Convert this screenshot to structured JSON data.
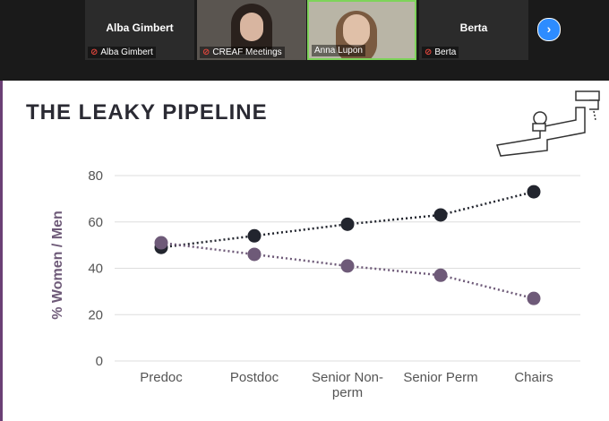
{
  "participants": [
    {
      "tile_name": "Alba Gimbert",
      "label": "Alba Gimbert"
    },
    {
      "label": "CREAF Meetings"
    },
    {
      "label": "Anna Lupon"
    },
    {
      "tile_name": "Berta",
      "label": "Berta"
    }
  ],
  "chart_data": {
    "type": "line",
    "title": "THE LEAKY PIPELINE",
    "ylabel": "% Women / Men",
    "categories": [
      "Predoc",
      "Postdoc",
      "Senior Non-perm",
      "Senior Perm",
      "Chairs"
    ],
    "series": [
      {
        "color": "#22252e",
        "values": [
          49,
          54,
          59,
          63,
          73
        ]
      },
      {
        "color": "#6e5a78",
        "values": [
          51,
          46,
          41,
          37,
          27
        ]
      }
    ],
    "ylim": [
      0,
      80
    ],
    "yticks": [
      0,
      20,
      40,
      60,
      80
    ],
    "grid": true
  }
}
